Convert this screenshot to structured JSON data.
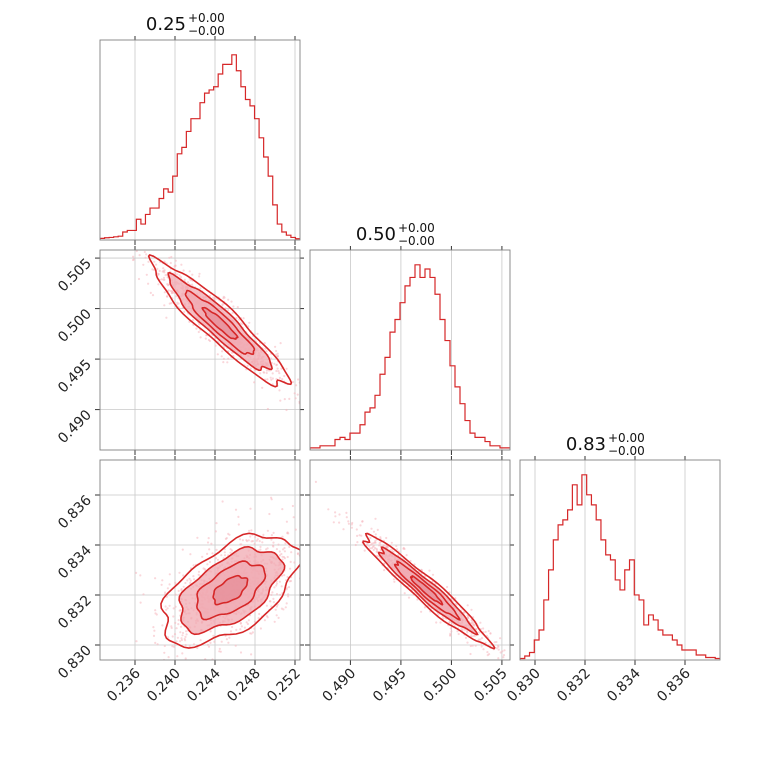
{
  "chart_data": {
    "type": "corner",
    "color": "#d62728",
    "contour_fill": "#f0a9b1",
    "contour_fill_dark": "#e58e98",
    "scatter_color": "#f5b7bd",
    "grid": true,
    "params": [
      {
        "title": "0.25",
        "err_plus": "+0.00",
        "err_minus": "−0.00",
        "range": [
          0.2325,
          0.2525
        ],
        "ticks": [
          0.236,
          0.24,
          0.244,
          0.248,
          0.252
        ],
        "tick_labels": [
          "0.236",
          "0.240",
          "0.244",
          "0.248",
          "0.252"
        ]
      },
      {
        "title": "0.50",
        "err_plus": "+0.00",
        "err_minus": "−0.00",
        "range": [
          0.486,
          0.5058
        ],
        "ticks": [
          0.49,
          0.495,
          0.5,
          0.505
        ],
        "tick_labels": [
          "0.490",
          "0.495",
          "0.500",
          "0.505"
        ]
      },
      {
        "title": "0.83",
        "err_plus": "+0.00",
        "err_minus": "−0.00",
        "range": [
          0.8294,
          0.8374
        ],
        "ticks": [
          0.83,
          0.832,
          0.834,
          0.836
        ],
        "tick_labels": [
          "0.830",
          "0.832",
          "0.834",
          "0.836"
        ]
      }
    ],
    "histograms": [
      {
        "param": 0,
        "edges": [
          0.2325,
          0.2525
        ],
        "counts": [
          0.5,
          0.7,
          0.8,
          1,
          1.2,
          2.5,
          3,
          3,
          6.5,
          5,
          8,
          10,
          10,
          13,
          16,
          15,
          20,
          27,
          29,
          34,
          38,
          38,
          43,
          46,
          47,
          48,
          52,
          55,
          55,
          58,
          53,
          48,
          44,
          42,
          38,
          32,
          26,
          20,
          11,
          5,
          2.5,
          1.5,
          0.8,
          0.4
        ]
      },
      {
        "param": 1,
        "edges": [
          0.486,
          0.5058
        ],
        "counts": [
          0.5,
          0.5,
          1,
          1,
          1,
          2.5,
          3,
          2.5,
          4,
          4,
          6,
          9,
          10,
          13,
          18,
          22,
          28,
          31,
          35,
          39,
          41,
          44,
          41,
          43,
          41,
          37,
          31,
          26,
          20,
          15,
          11,
          7,
          4,
          3,
          3,
          2,
          1,
          1,
          0.5,
          0.5
        ]
      },
      {
        "param": 2,
        "edges": [
          0.8294,
          0.8374
        ],
        "counts": [
          0.3,
          0.8,
          1.5,
          4,
          6,
          12,
          18,
          24,
          27,
          28,
          30,
          35,
          31,
          37,
          33,
          31,
          28,
          24,
          21,
          20,
          16,
          14,
          18,
          20,
          13,
          12,
          7,
          9,
          8,
          6,
          5,
          5,
          4,
          3,
          2,
          2,
          2,
          1,
          1,
          0.5,
          0.5,
          0.3
        ]
      }
    ],
    "pairs": [
      {
        "x_param": 0,
        "y_param": 1,
        "x_center": 0.2445,
        "y_center": 0.4985,
        "sx": 0.0034,
        "sy": 0.0031,
        "rho": -0.93,
        "contours": [
          {
            "level_sigma": 0.5,
            "filled": true
          },
          {
            "level_sigma": 1.0,
            "filled": true
          },
          {
            "level_sigma": 1.5,
            "filled": true
          },
          {
            "level_sigma": 2.0,
            "filled": false
          }
        ]
      },
      {
        "x_param": 0,
        "y_param": 2,
        "x_center": 0.2455,
        "y_center": 0.8322,
        "sx": 0.0034,
        "sy": 0.0011,
        "rho": 0.55,
        "contours": [
          {
            "level_sigma": 0.5,
            "filled": true
          },
          {
            "level_sigma": 1.0,
            "filled": true
          },
          {
            "level_sigma": 1.5,
            "filled": true
          },
          {
            "level_sigma": 2.0,
            "filled": false
          }
        ]
      },
      {
        "x_param": 1,
        "y_param": 2,
        "x_center": 0.4975,
        "y_center": 0.8322,
        "sx": 0.0031,
        "sy": 0.0011,
        "rho": -0.96,
        "contours": [
          {
            "level_sigma": 0.5,
            "filled": true
          },
          {
            "level_sigma": 1.0,
            "filled": true
          },
          {
            "level_sigma": 1.5,
            "filled": true
          },
          {
            "level_sigma": 2.0,
            "filled": false
          }
        ]
      }
    ]
  }
}
